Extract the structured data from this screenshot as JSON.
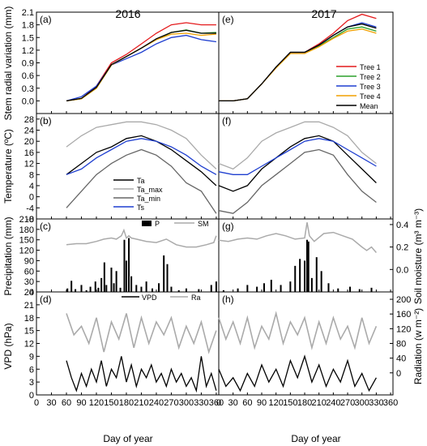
{
  "figure": {
    "col_titles": [
      "2016",
      "2017"
    ],
    "xlabel": "Day of year",
    "x_ticks_left": [
      "0",
      "30",
      "60",
      "90",
      "120",
      "150",
      "180",
      "210",
      "240",
      "270",
      "300",
      "330",
      "360"
    ],
    "x_ticks_right": [
      "0",
      "30",
      "60",
      "90",
      "120",
      "150",
      "180",
      "210",
      "240",
      "270",
      "300",
      "330",
      "360"
    ]
  },
  "chart_data": [
    {
      "panel": "(a)",
      "type": "line",
      "ylabel": "Stem radial variation (mm)",
      "x": [
        60,
        90,
        120,
        150,
        180,
        210,
        240,
        270,
        300,
        330,
        360
      ],
      "xlim": [
        0,
        365
      ],
      "ylim": [
        -0.3,
        2.1
      ],
      "yticks": [
        "0.0",
        "0.3",
        "0.6",
        "0.9",
        "1.2",
        "1.5",
        "1.8",
        "2.1"
      ],
      "series": [
        {
          "name": "Tree 1",
          "color": "#e41a1c",
          "values": [
            0.0,
            0.05,
            0.35,
            0.9,
            1.1,
            1.35,
            1.6,
            1.8,
            1.85,
            1.8,
            1.8
          ]
        },
        {
          "name": "Tree 2",
          "color": "#2ca02c",
          "values": [
            0.0,
            0.05,
            0.3,
            0.85,
            1.05,
            1.25,
            1.45,
            1.62,
            1.68,
            1.6,
            1.62
          ]
        },
        {
          "name": "Tree 3",
          "color": "#1f3fd0",
          "values": [
            0.0,
            0.1,
            0.35,
            0.85,
            1.0,
            1.15,
            1.35,
            1.5,
            1.55,
            1.45,
            1.4
          ]
        },
        {
          "name": "Tree 4",
          "color": "#f0a000",
          "values": [
            0.0,
            0.05,
            0.3,
            0.85,
            1.05,
            1.25,
            1.45,
            1.58,
            1.6,
            1.55,
            1.58
          ]
        },
        {
          "name": "Mean",
          "color": "#000000",
          "values": [
            0.0,
            0.06,
            0.32,
            0.86,
            1.05,
            1.25,
            1.47,
            1.62,
            1.67,
            1.6,
            1.6
          ]
        }
      ]
    },
    {
      "panel": "(e)",
      "type": "line",
      "x": [
        0,
        30,
        60,
        90,
        120,
        150,
        180,
        210,
        240,
        270,
        300,
        330
      ],
      "xlim": [
        0,
        365
      ],
      "ylim": [
        -0.3,
        2.1
      ],
      "series": [
        {
          "name": "Tree 1",
          "color": "#e41a1c",
          "values": [
            0.0,
            0.0,
            0.05,
            0.4,
            0.8,
            1.15,
            1.15,
            1.35,
            1.6,
            1.9,
            2.05,
            1.95
          ]
        },
        {
          "name": "Tree 2",
          "color": "#2ca02c",
          "values": [
            0.0,
            0.0,
            0.05,
            0.4,
            0.8,
            1.15,
            1.15,
            1.3,
            1.5,
            1.7,
            1.75,
            1.65
          ]
        },
        {
          "name": "Tree 3",
          "color": "#1f3fd0",
          "values": [
            0.0,
            0.0,
            0.05,
            0.4,
            0.8,
            1.15,
            1.15,
            1.32,
            1.55,
            1.75,
            1.85,
            1.75
          ]
        },
        {
          "name": "Tree 4",
          "color": "#f0a000",
          "values": [
            0.0,
            0.0,
            0.05,
            0.4,
            0.78,
            1.12,
            1.12,
            1.28,
            1.48,
            1.65,
            1.7,
            1.6
          ]
        },
        {
          "name": "Mean",
          "color": "#000000",
          "values": [
            0.0,
            0.0,
            0.05,
            0.4,
            0.8,
            1.15,
            1.15,
            1.32,
            1.55,
            1.75,
            1.82,
            1.72
          ]
        }
      ],
      "legend": "right"
    },
    {
      "panel": "(b)",
      "type": "line",
      "ylabel": "Temperature (ºC)",
      "x": [
        60,
        90,
        120,
        150,
        180,
        210,
        240,
        270,
        300,
        330,
        360
      ],
      "xlim": [
        0,
        365
      ],
      "ylim": [
        -8,
        30
      ],
      "yticks": [
        "-8",
        "-4",
        "0",
        "4",
        "8",
        "12",
        "16",
        "20",
        "24",
        "28"
      ],
      "series": [
        {
          "name": "Ta",
          "color": "#000000",
          "values": [
            8,
            12,
            16,
            18,
            21,
            22,
            20,
            17,
            13,
            9,
            4
          ]
        },
        {
          "name": "Ta_max",
          "color": "#aaaaaa",
          "values": [
            18,
            22,
            25,
            26,
            27,
            27,
            26,
            24,
            21,
            15,
            10
          ]
        },
        {
          "name": "Ta_min",
          "color": "#666666",
          "values": [
            -4,
            2,
            8,
            12,
            15,
            17,
            15,
            11,
            5,
            2,
            -6
          ]
        },
        {
          "name": "Ts",
          "color": "#1f3fd0",
          "values": [
            8,
            10,
            14,
            17,
            20,
            21,
            20,
            18,
            15,
            11,
            8
          ]
        }
      ],
      "legend": "lower-middle"
    },
    {
      "panel": "(f)",
      "type": "line",
      "x": [
        0,
        30,
        60,
        90,
        120,
        150,
        180,
        210,
        240,
        270,
        300,
        330
      ],
      "xlim": [
        0,
        365
      ],
      "ylim": [
        -8,
        30
      ],
      "series": [
        {
          "name": "Ta",
          "color": "#000000",
          "values": [
            4,
            2,
            4,
            10,
            14,
            18,
            21,
            22,
            20,
            15,
            10,
            5
          ]
        },
        {
          "name": "Ta_max",
          "color": "#aaaaaa",
          "values": [
            12,
            10,
            14,
            20,
            23,
            25,
            27,
            27,
            25,
            22,
            16,
            12
          ]
        },
        {
          "name": "Ta_min",
          "color": "#666666",
          "values": [
            -5,
            -6,
            -2,
            4,
            8,
            12,
            16,
            17,
            15,
            8,
            2,
            -2
          ]
        },
        {
          "name": "Ts",
          "color": "#1f3fd0",
          "values": [
            9,
            8,
            8,
            11,
            14,
            17,
            20,
            21,
            20,
            17,
            14,
            11
          ]
        }
      ]
    },
    {
      "panel": "(c)",
      "type": "bar+line",
      "ylabel": "Precipitation (mm)",
      "ylim": [
        0,
        210
      ],
      "yticks": [
        "0",
        "30",
        "60",
        "90",
        "120",
        "150",
        "180",
        "210"
      ],
      "bars_name": "P",
      "bars": [
        [
          62,
          10
        ],
        [
          70,
          32
        ],
        [
          78,
          8
        ],
        [
          90,
          20
        ],
        [
          100,
          5
        ],
        [
          108,
          15
        ],
        [
          118,
          30
        ],
        [
          124,
          12
        ],
        [
          130,
          40
        ],
        [
          136,
          85
        ],
        [
          140,
          20
        ],
        [
          150,
          70
        ],
        [
          155,
          25
        ],
        [
          160,
          60
        ],
        [
          168,
          12
        ],
        [
          176,
          150
        ],
        [
          180,
          90
        ],
        [
          185,
          155
        ],
        [
          190,
          45
        ],
        [
          200,
          20
        ],
        [
          210,
          15
        ],
        [
          220,
          30
        ],
        [
          232,
          10
        ],
        [
          245,
          25
        ],
        [
          255,
          105
        ],
        [
          262,
          80
        ],
        [
          270,
          15
        ],
        [
          285,
          5
        ],
        [
          300,
          10
        ],
        [
          325,
          8
        ],
        [
          350,
          20
        ],
        [
          360,
          30
        ]
      ],
      "sm_name": "SM",
      "sm_x": [
        60,
        80,
        100,
        120,
        135,
        150,
        160,
        170,
        175,
        180,
        185,
        190,
        200,
        220,
        240,
        260,
        280,
        300,
        320,
        340,
        355,
        360
      ],
      "sm_values": [
        0.22,
        0.23,
        0.23,
        0.25,
        0.27,
        0.28,
        0.27,
        0.3,
        0.35,
        0.28,
        0.3,
        0.28,
        0.27,
        0.25,
        0.24,
        0.27,
        0.22,
        0.2,
        0.2,
        0.22,
        0.24,
        0.3
      ],
      "y2lim": [
        -0.2,
        0.45
      ]
    },
    {
      "panel": "(g)",
      "type": "bar+line",
      "ylabel_right": "Soil moisture (m³ m⁻³)",
      "ylim": [
        0,
        210
      ],
      "bars": [
        [
          10,
          5
        ],
        [
          40,
          10
        ],
        [
          60,
          20
        ],
        [
          80,
          15
        ],
        [
          95,
          25
        ],
        [
          110,
          35
        ],
        [
          130,
          20
        ],
        [
          150,
          30
        ],
        [
          160,
          75
        ],
        [
          170,
          95
        ],
        [
          180,
          90
        ],
        [
          185,
          150
        ],
        [
          188,
          145
        ],
        [
          195,
          40
        ],
        [
          205,
          100
        ],
        [
          215,
          60
        ],
        [
          230,
          25
        ],
        [
          250,
          10
        ],
        [
          275,
          15
        ],
        [
          295,
          8
        ],
        [
          320,
          12
        ]
      ],
      "sm_x": [
        0,
        20,
        40,
        60,
        80,
        100,
        120,
        140,
        160,
        180,
        185,
        190,
        200,
        220,
        240,
        260,
        280,
        300,
        310,
        320,
        330
      ],
      "sm_values": [
        0.26,
        0.25,
        0.27,
        0.28,
        0.27,
        0.3,
        0.32,
        0.3,
        0.27,
        0.28,
        0.42,
        0.3,
        0.25,
        0.32,
        0.33,
        0.3,
        0.27,
        0.2,
        0.17,
        0.2,
        0.15
      ],
      "y2lim": [
        -0.2,
        0.45
      ],
      "y2ticks": [
        "0.0",
        "0.2",
        "0.4"
      ]
    },
    {
      "panel": "(d)",
      "type": "line",
      "ylabel": "VPD (hPa)",
      "ylim": [
        0,
        24
      ],
      "yticks": [
        "0",
        "3",
        "6",
        "9",
        "12",
        "15",
        "18",
        "21",
        "24"
      ],
      "series": [
        {
          "name": "VPD",
          "color": "#000000",
          "x": [
            60,
            70,
            80,
            90,
            100,
            110,
            120,
            130,
            140,
            150,
            160,
            170,
            180,
            190,
            200,
            210,
            220,
            230,
            240,
            250,
            260,
            270,
            280,
            290,
            300,
            310,
            320,
            330,
            340,
            350,
            360
          ],
          "values": [
            8,
            4,
            1,
            5,
            2,
            6,
            3,
            8,
            2,
            6,
            4,
            9,
            3,
            7,
            2,
            6,
            4,
            7,
            3,
            5,
            2,
            6,
            3,
            5,
            2,
            4,
            1,
            9,
            2,
            5,
            1
          ]
        },
        {
          "name": "Ra",
          "color": "#aaaaaa",
          "x": [
            60,
            75,
            90,
            105,
            120,
            135,
            150,
            165,
            180,
            195,
            210,
            225,
            240,
            255,
            270,
            285,
            300,
            315,
            330,
            345,
            360
          ],
          "values": [
            19,
            14,
            16,
            12,
            18,
            10,
            17,
            13,
            19,
            11,
            18,
            12,
            17,
            14,
            18,
            11,
            16,
            12,
            17,
            10,
            15
          ]
        }
      ],
      "y2lim": [
        -60,
        220
      ]
    },
    {
      "panel": "(h)",
      "type": "line",
      "ylabel_right": "Radiation (w m⁻²)",
      "ylim": [
        0,
        24
      ],
      "series": [
        {
          "name": "VPD",
          "color": "#000000",
          "x": [
            0,
            15,
            30,
            45,
            60,
            75,
            90,
            105,
            120,
            135,
            150,
            165,
            180,
            195,
            210,
            225,
            240,
            255,
            270,
            285,
            300,
            315,
            330
          ],
          "values": [
            6,
            2,
            4,
            1,
            5,
            2,
            7,
            3,
            6,
            2,
            8,
            4,
            9,
            3,
            7,
            2,
            6,
            3,
            8,
            2,
            5,
            1,
            4
          ]
        },
        {
          "name": "Ra",
          "color": "#aaaaaa",
          "x": [
            0,
            15,
            30,
            45,
            60,
            75,
            90,
            105,
            120,
            135,
            150,
            165,
            180,
            195,
            210,
            225,
            240,
            255,
            270,
            285,
            300,
            315,
            330
          ],
          "values": [
            18,
            13,
            17,
            12,
            18,
            11,
            16,
            13,
            19,
            12,
            17,
            14,
            18,
            11,
            17,
            12,
            18,
            13,
            16,
            11,
            18,
            12,
            16
          ]
        }
      ],
      "y2ticks": [
        "0",
        "40",
        "80",
        "120",
        "160",
        "200"
      ],
      "y2lim": [
        -60,
        220
      ]
    }
  ],
  "panel_labels": [
    "(a)",
    "(b)",
    "(c)",
    "(d)",
    "(e)",
    "(f)",
    "(g)",
    "(h)"
  ],
  "legends": {
    "a": [
      "Tree 1",
      "Tree 2",
      "Tree 3",
      "Tree 4",
      "Mean"
    ],
    "b": [
      "Ta",
      "Ta_max",
      "Ta_min",
      "Ts"
    ],
    "c": [
      "P",
      "SM"
    ],
    "d": [
      "VPD",
      "Ra"
    ]
  }
}
